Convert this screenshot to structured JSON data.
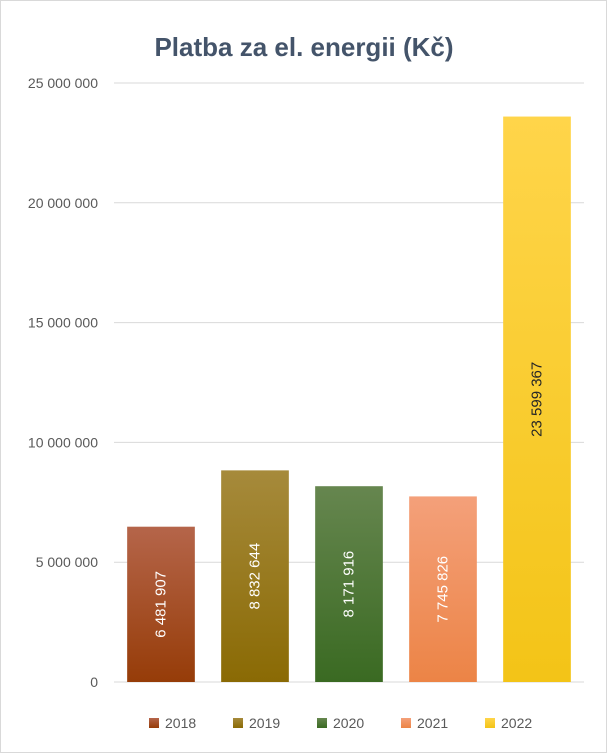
{
  "chart_data": {
    "type": "bar",
    "title": "Platba za el. energii (Kč)",
    "categories": [
      "2018",
      "2019",
      "2020",
      "2021",
      "2022"
    ],
    "values": [
      6481907,
      8832644,
      8171916,
      7745826,
      23599367
    ],
    "data_labels": [
      "6 481 907",
      "8 832 644",
      "8 171 916",
      "7 745 826",
      "23 599 367"
    ],
    "ylim": [
      0,
      25000000
    ],
    "yticks": [
      0,
      5000000,
      10000000,
      15000000,
      20000000,
      25000000
    ],
    "ytick_labels": [
      "0",
      "5 000 000",
      "10 000 000",
      "15 000 000",
      "20 000 000",
      "25 000 000"
    ],
    "grid": true,
    "legend_position": "bottom",
    "colors": [
      {
        "top": "#b5654a",
        "bottom": "#963c08"
      },
      {
        "top": "#a68a3b",
        "bottom": "#8a6a04"
      },
      {
        "top": "#66864f",
        "bottom": "#3a6a22"
      },
      {
        "top": "#f4a07a",
        "bottom": "#ec8446"
      },
      {
        "top": "#ffd54a",
        "bottom": "#f3c417"
      }
    ]
  }
}
